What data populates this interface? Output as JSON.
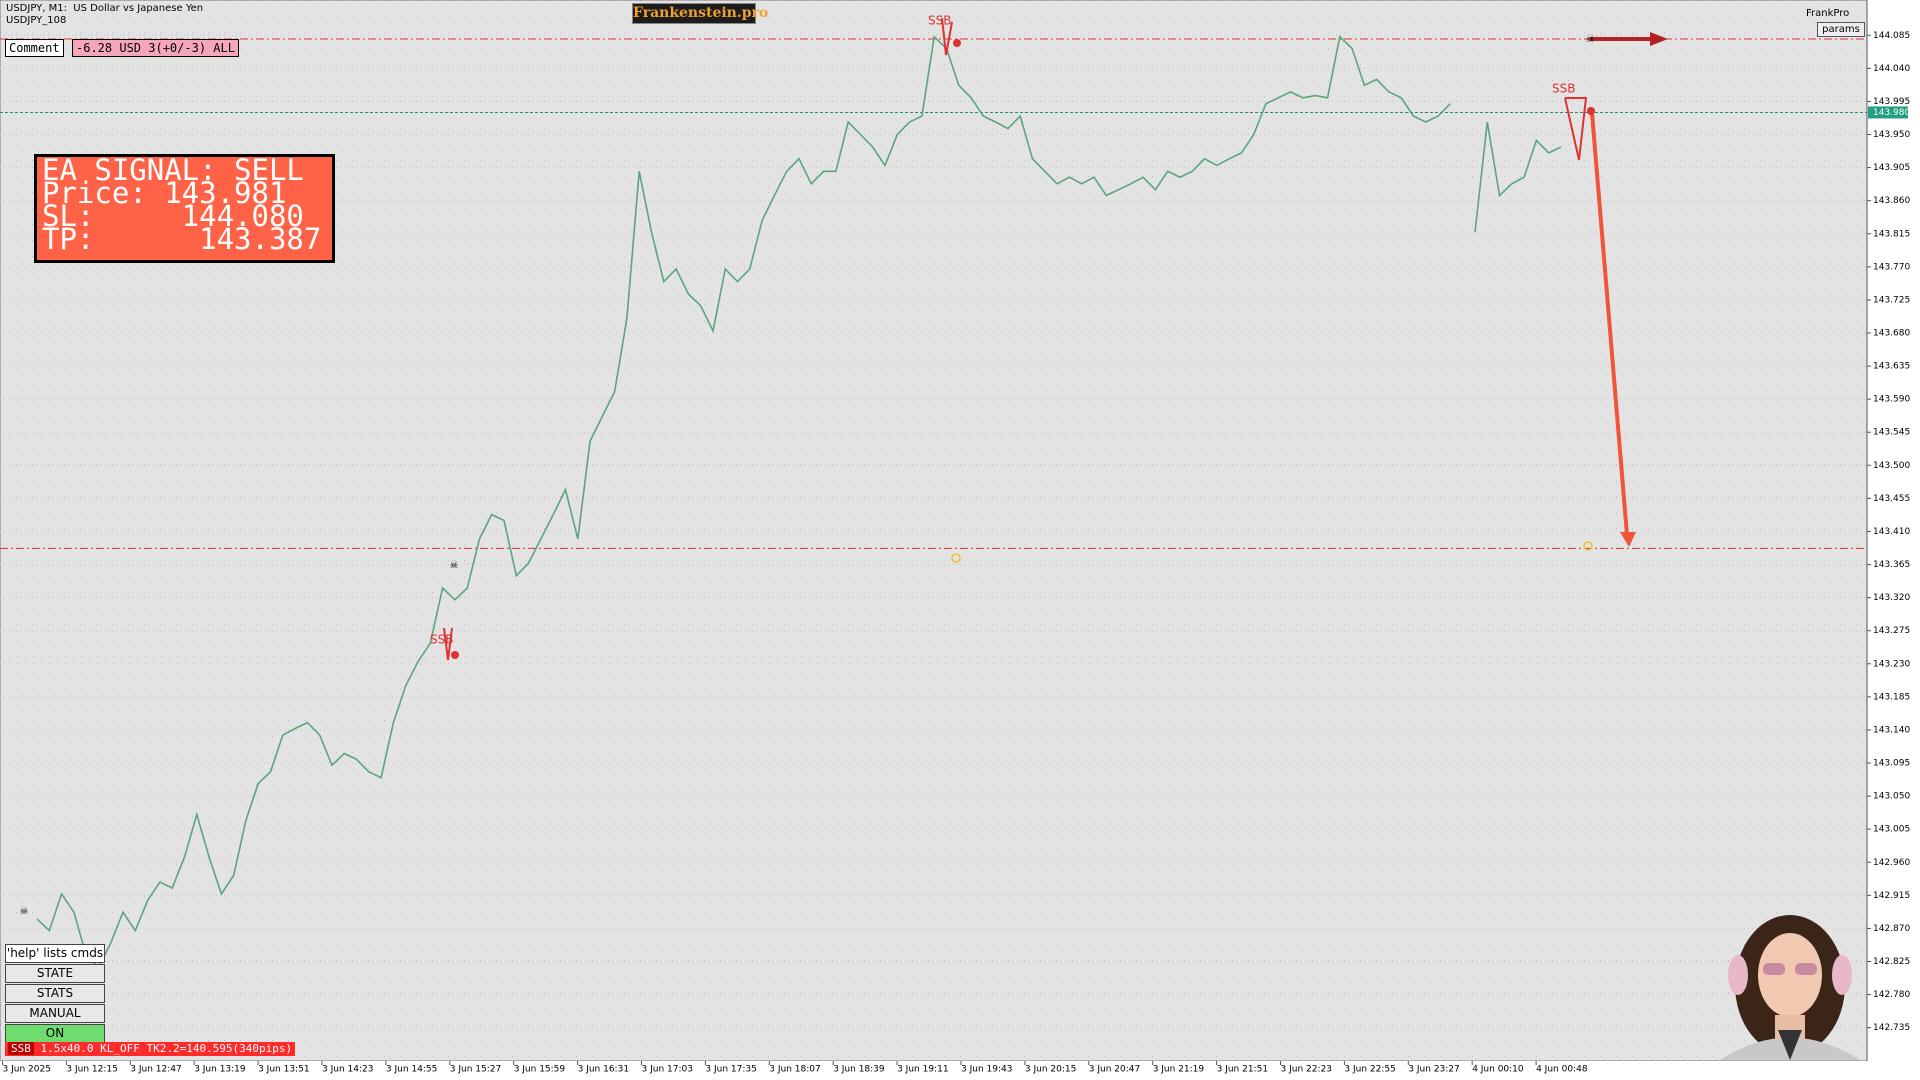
{
  "header": {
    "symbol": "USDJPY, M1:  US Dollar vs Japanese Yen",
    "account": "USDJPY_108",
    "brand": "Frankenstein.pro",
    "user": "FrankPro",
    "params": "params"
  },
  "comment": {
    "label": "Comment",
    "value": "-6.28 USD 3(+0/-3) ALL"
  },
  "signal": {
    "title": "EA SIGNAL: SELL",
    "price": "Price: 143.981",
    "sl": "SL:     144.080",
    "tp": "TP:      143.387"
  },
  "help": "'help' lists cmds",
  "buttons": [
    "STATE",
    "STATS",
    "MANUAL",
    "ON"
  ],
  "status": {
    "tag": "SSB",
    "text": "1.5x40.0 KL_OFF TK2.2=140.595(340pips)"
  },
  "markers": [
    "SSB",
    "SSB",
    "SSB"
  ],
  "chart_data": {
    "type": "line",
    "ylim": [
      142.691,
      144.133
    ],
    "yticks": [
      144.085,
      {
        "value": 144.04,
        "label": "144.040"
      },
      143.995,
      {
        "value": 143.95,
        "label": "143.950"
      },
      143.905,
      {
        "value": 143.86,
        "label": "143.860"
      },
      143.815,
      {
        "value": 143.77,
        "label": "143.770"
      },
      143.725,
      {
        "value": 143.68,
        "label": "143.680"
      },
      143.635,
      {
        "value": 143.59,
        "label": "143.590"
      },
      143.545,
      {
        "value": 143.5,
        "label": "143.500"
      },
      143.455,
      {
        "value": 143.41,
        "label": "143.410"
      },
      143.365,
      {
        "value": 143.32,
        "label": "143.320"
      },
      143.275,
      {
        "value": 143.23,
        "label": "143.230"
      },
      143.185,
      {
        "value": 143.14,
        "label": "143.140"
      },
      143.095,
      {
        "value": 143.05,
        "label": "143.050"
      },
      143.005,
      {
        "value": 142.96,
        "label": "142.960"
      },
      142.915,
      {
        "value": 142.87,
        "label": "142.870"
      },
      142.825,
      {
        "value": 142.78,
        "label": "142.780"
      },
      142.735
    ],
    "categories": [
      "3 Jun 2025",
      "3 Jun 12:15",
      "3 Jun 12:47",
      "3 Jun 13:19",
      "3 Jun 13:51",
      "3 Jun 14:23",
      "3 Jun 14:55",
      "3 Jun 15:27",
      "3 Jun 15:59",
      "3 Jun 16:31",
      "3 Jun 17:03",
      "3 Jun 17:35",
      "3 Jun 18:07",
      "3 Jun 18:39",
      "3 Jun 19:11",
      "3 Jun 19:43",
      "3 Jun 20:15",
      "3 Jun 20:47",
      "3 Jun 21:19",
      "3 Jun 21:51",
      "3 Jun 22:23",
      "3 Jun 22:55",
      "3 Jun 23:27",
      "4 Jun 00:10",
      "4 Jun 00:48"
    ],
    "price": [
      142.883,
      142.867,
      142.917,
      142.892,
      142.833,
      142.817,
      142.85,
      142.892,
      142.867,
      142.908,
      142.933,
      142.925,
      142.967,
      143.025,
      142.967,
      142.917,
      142.942,
      143.017,
      143.067,
      143.083,
      143.133,
      143.142,
      143.15,
      143.133,
      143.092,
      143.108,
      143.1,
      143.083,
      143.075,
      143.15,
      143.2,
      143.233,
      143.258,
      143.333,
      143.317,
      143.333,
      143.4,
      143.433,
      143.425,
      143.35,
      143.367,
      143.4,
      143.433,
      143.467,
      143.4,
      143.533,
      143.567,
      143.6,
      143.7,
      143.9,
      143.817,
      143.75,
      143.767,
      143.733,
      143.717,
      143.683,
      143.767,
      143.75,
      143.767,
      143.833,
      143.867,
      143.9,
      143.917,
      143.883,
      143.9,
      143.9,
      143.967,
      143.95,
      143.933,
      143.908,
      143.95,
      143.967,
      143.975,
      144.083,
      144.067,
      144.017,
      144.0,
      143.975,
      143.967,
      143.958,
      143.975,
      143.917,
      143.9,
      143.883,
      143.892,
      143.883,
      143.892,
      143.867,
      143.875,
      143.883,
      143.892,
      143.875,
      143.9,
      143.892,
      143.9,
      143.917,
      143.908,
      143.917,
      143.925,
      143.95,
      143.992,
      144.0,
      144.008,
      144.0,
      144.003,
      144.0,
      144.083,
      144.067,
      144.017,
      144.025,
      144.008,
      144.0,
      143.975,
      143.967,
      143.975,
      143.992,
      null,
      143.817,
      143.967,
      143.867,
      143.883,
      143.892,
      143.942,
      143.925,
      143.933
    ],
    "color": "#5aa57c",
    "current_price": {
      "value": 143.98,
      "label": "143.980"
    },
    "sl_level": 144.08,
    "tp_level": 143.387
  }
}
